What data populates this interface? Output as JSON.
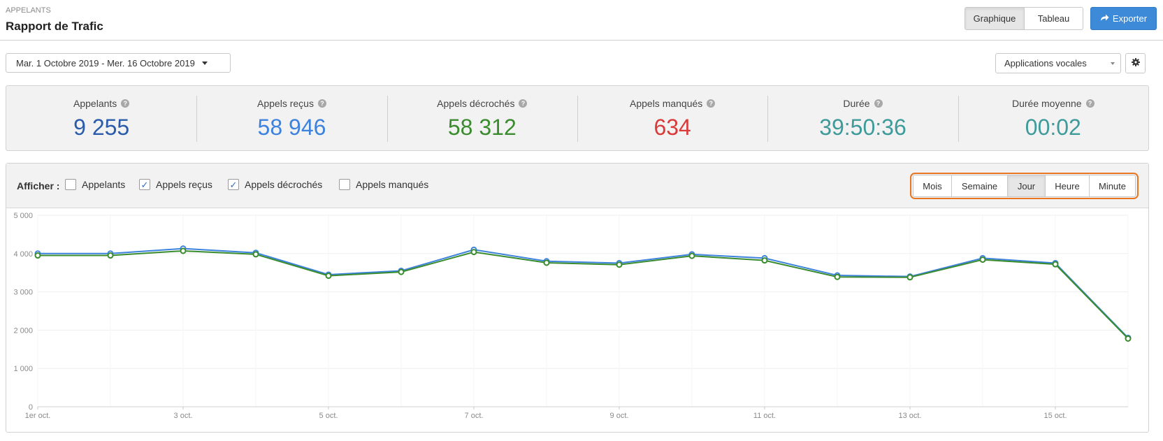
{
  "header": {
    "breadcrumb": "APPELANTS",
    "title": "Rapport de Trafic",
    "views": [
      {
        "label": "Graphique",
        "active": true
      },
      {
        "label": "Tableau",
        "active": false
      }
    ],
    "export_label": "Exporter"
  },
  "filters": {
    "date_range": "Mar. 1 Octobre 2019 - Mer. 16 Octobre 2019",
    "app_select": "Applications vocales"
  },
  "stats": [
    {
      "label": "Appelants",
      "value": "9 255",
      "color": "#2b5cab"
    },
    {
      "label": "Appels reçus",
      "value": "58 946",
      "color": "#3d82dd"
    },
    {
      "label": "Appels décrochés",
      "value": "58 312",
      "color": "#3a8c2e"
    },
    {
      "label": "Appels manqués",
      "value": "634",
      "color": "#d93b3b"
    },
    {
      "label": "Durée",
      "value": "39:50:36",
      "color": "#3f9a9a"
    },
    {
      "label": "Durée moyenne",
      "value": "00:02",
      "color": "#3f9a9a"
    }
  ],
  "chart_panel": {
    "show_label": "Afficher :",
    "checkboxes": [
      {
        "label": "Appelants",
        "checked": false
      },
      {
        "label": "Appels reçus",
        "checked": true
      },
      {
        "label": "Appels décrochés",
        "checked": true
      },
      {
        "label": "Appels manqués",
        "checked": false
      }
    ],
    "granularity": [
      {
        "label": "Mois",
        "active": false
      },
      {
        "label": "Semaine",
        "active": false
      },
      {
        "label": "Jour",
        "active": true
      },
      {
        "label": "Heure",
        "active": false
      },
      {
        "label": "Minute",
        "active": false
      }
    ]
  },
  "chart_data": {
    "type": "line",
    "title": "",
    "xlabel": "",
    "ylabel": "",
    "ylim": [
      0,
      5000
    ],
    "yticks": [
      "0",
      "1 000",
      "2 000",
      "3 000",
      "4 000",
      "5 000"
    ],
    "ytick_values": [
      0,
      1000,
      2000,
      3000,
      4000,
      5000
    ],
    "x": [
      1,
      2,
      3,
      4,
      5,
      6,
      7,
      8,
      9,
      10,
      11,
      12,
      13,
      14,
      15,
      16
    ],
    "xticks": [
      {
        "day": 1,
        "label": "1er oct."
      },
      {
        "day": 3,
        "label": "3 oct."
      },
      {
        "day": 5,
        "label": "5 oct."
      },
      {
        "day": 7,
        "label": "7 oct."
      },
      {
        "day": 9,
        "label": "9 oct."
      },
      {
        "day": 11,
        "label": "11 oct."
      },
      {
        "day": 13,
        "label": "13 oct."
      },
      {
        "day": 15,
        "label": "15 oct."
      }
    ],
    "grid": true,
    "series": [
      {
        "color": "#3d82dd",
        "values": [
          4000,
          4000,
          4130,
          4020,
          3450,
          3550,
          4100,
          3800,
          3750,
          3980,
          3880,
          3430,
          3400,
          3880,
          3750,
          1800
        ]
      },
      {
        "color": "#3a8c2e",
        "values": [
          3950,
          3950,
          4070,
          3980,
          3420,
          3520,
          4040,
          3760,
          3710,
          3940,
          3820,
          3390,
          3380,
          3840,
          3720,
          1780
        ]
      }
    ]
  }
}
